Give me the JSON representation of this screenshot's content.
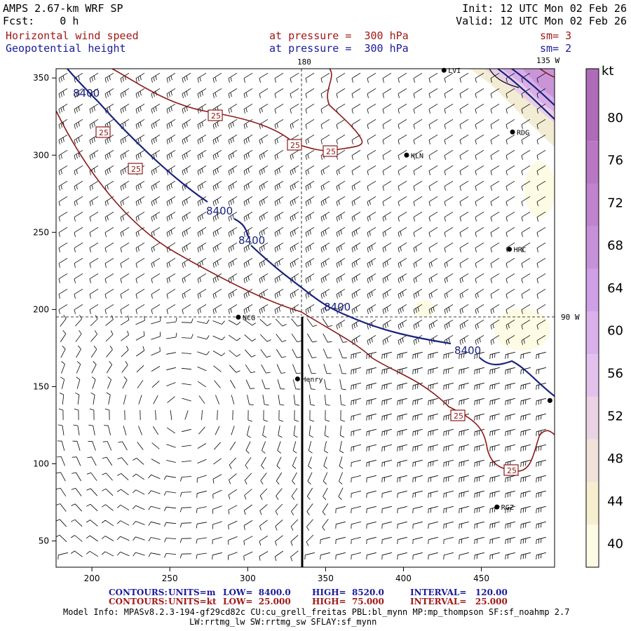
{
  "header": {
    "model": "AMPS 2.67-km WRF SP",
    "fcst": "Fcst:    0 h",
    "init": "Init: 12 UTC Mon 02 Feb 26",
    "valid": "Valid: 12 UTC Mon 02 Feb 26",
    "field1_name": "Horizontal wind speed",
    "field1_level": "at pressure =  300 hPa",
    "field1_sm": "sm= 3",
    "field2_name": "Geopotential height",
    "field2_level": "at pressure =  300 hPa",
    "field2_sm": "sm= 2"
  },
  "map_labels": {
    "lon_180": "180",
    "lon_135w": "135 W",
    "lon_90w": "90 W"
  },
  "stations": [
    {
      "name": "LVI",
      "x": 426,
      "y": 355
    },
    {
      "name": "RDG",
      "x": 470,
      "y": 315
    },
    {
      "name": "KLN",
      "x": 402,
      "y": 300
    },
    {
      "name": "HRC",
      "x": 468,
      "y": 239
    },
    {
      "name": "NCG",
      "x": 294,
      "y": 195
    },
    {
      "name": "Henry",
      "x": 332,
      "y": 155
    },
    {
      "name": "",
      "x": 494,
      "y": 141
    },
    {
      "name": "RGZ",
      "x": 460,
      "y": 72
    }
  ],
  "contours": {
    "height_label": "8400",
    "speed_label": "25"
  },
  "colorbar": {
    "unit": "kt",
    "levels": [
      "40",
      "44",
      "48",
      "52",
      "56",
      "60",
      "64",
      "68",
      "72",
      "76",
      "80"
    ],
    "colors": [
      "#fdfbe3",
      "#f6efcf",
      "#f0e2d8",
      "#ead3e4",
      "#e2c2ec",
      "#d9b0ec",
      "#cfa0e6",
      "#c791d8",
      "#bf84cc",
      "#b878c2",
      "#ae6cb8"
    ]
  },
  "axes": {
    "x_ticks": [
      "200",
      "250",
      "300",
      "350",
      "400",
      "450"
    ],
    "y_ticks": [
      "50",
      "100",
      "150",
      "200",
      "250",
      "300",
      "350"
    ],
    "x_range": [
      177,
      497
    ],
    "y_range": [
      33,
      356
    ]
  },
  "footer": {
    "c1_label": "CONTOURS:",
    "c1_units": "UNITS=m",
    "c1_low": "LOW=  8400.0",
    "c1_high": "HIGH=  8520.0",
    "c1_int": "INTERVAL=   120.00",
    "c2_label": "CONTOURS:",
    "c2_units": "UNITS=kt",
    "c2_low": "LOW=  25.000",
    "c2_high": "HIGH=  75.000",
    "c2_int": "INTERVAL=   25.000",
    "info1": "Model Info: MPASv8.2.3-194-gf29cd82c CU:cu_grell_freitas PBL:bl_mynn MP:mp_thompson SF:sf_noahmp 2.7",
    "info2": "LW:rrtmg_lw SW:rrtmg_sw SFLAY:sf_mynn"
  },
  "colors": {
    "height_contour": "#1a237e",
    "speed_contour": "#8b1a1a",
    "barb": "#000000"
  }
}
